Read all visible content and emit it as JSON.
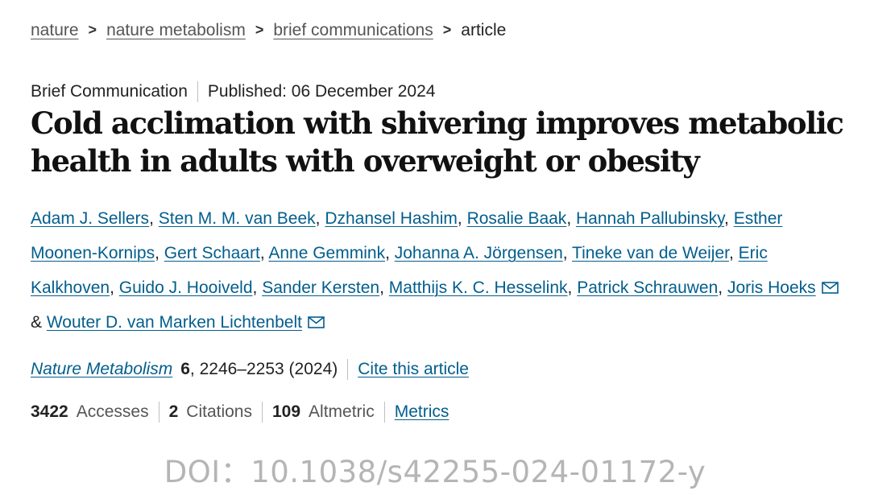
{
  "breadcrumb": {
    "items": [
      "nature",
      "nature metabolism",
      "brief communications"
    ],
    "current": "article",
    "separator": ">"
  },
  "meta": {
    "type": "Brief Communication",
    "published": "Published: 06 December 2024"
  },
  "title": "Cold acclimation with shivering improves metabolic health in adults with overweight or obesity",
  "authors": [
    "Adam J. Sellers",
    "Sten M. M. van Beek",
    "Dzhansel Hashim",
    "Rosalie Baak",
    "Hannah Pallubinsky",
    "Esther Moonen-Kornips",
    "Gert Schaart",
    "Anne Gemmink",
    "Johanna A. Jörgensen",
    "Tineke van de Weijer",
    "Eric Kalkhoven",
    "Guido J. Hooiveld",
    "Sander Kersten",
    "Matthijs K. C. Hesselink",
    "Patrick Schrauwen",
    "Joris Hoeks"
  ],
  "author_last": "Wouter D. van Marken Lichtenbelt",
  "author_conjunction": "&",
  "journal": {
    "name": "Nature Metabolism",
    "volume": "6",
    "pages": ", 2246–2253 (2024)",
    "cite": "Cite this article"
  },
  "metrics": {
    "accesses_count": "3422",
    "accesses_label": "Accesses",
    "citations_count": "2",
    "citations_label": "Citations",
    "altmetric_count": "109",
    "altmetric_label": "Altmetric",
    "link": "Metrics"
  },
  "doi": "DOI：10.1038/s42255-024-01172-y",
  "colors": {
    "link": "#025e8d",
    "text": "#222222",
    "doi": "#b5b5b5"
  }
}
